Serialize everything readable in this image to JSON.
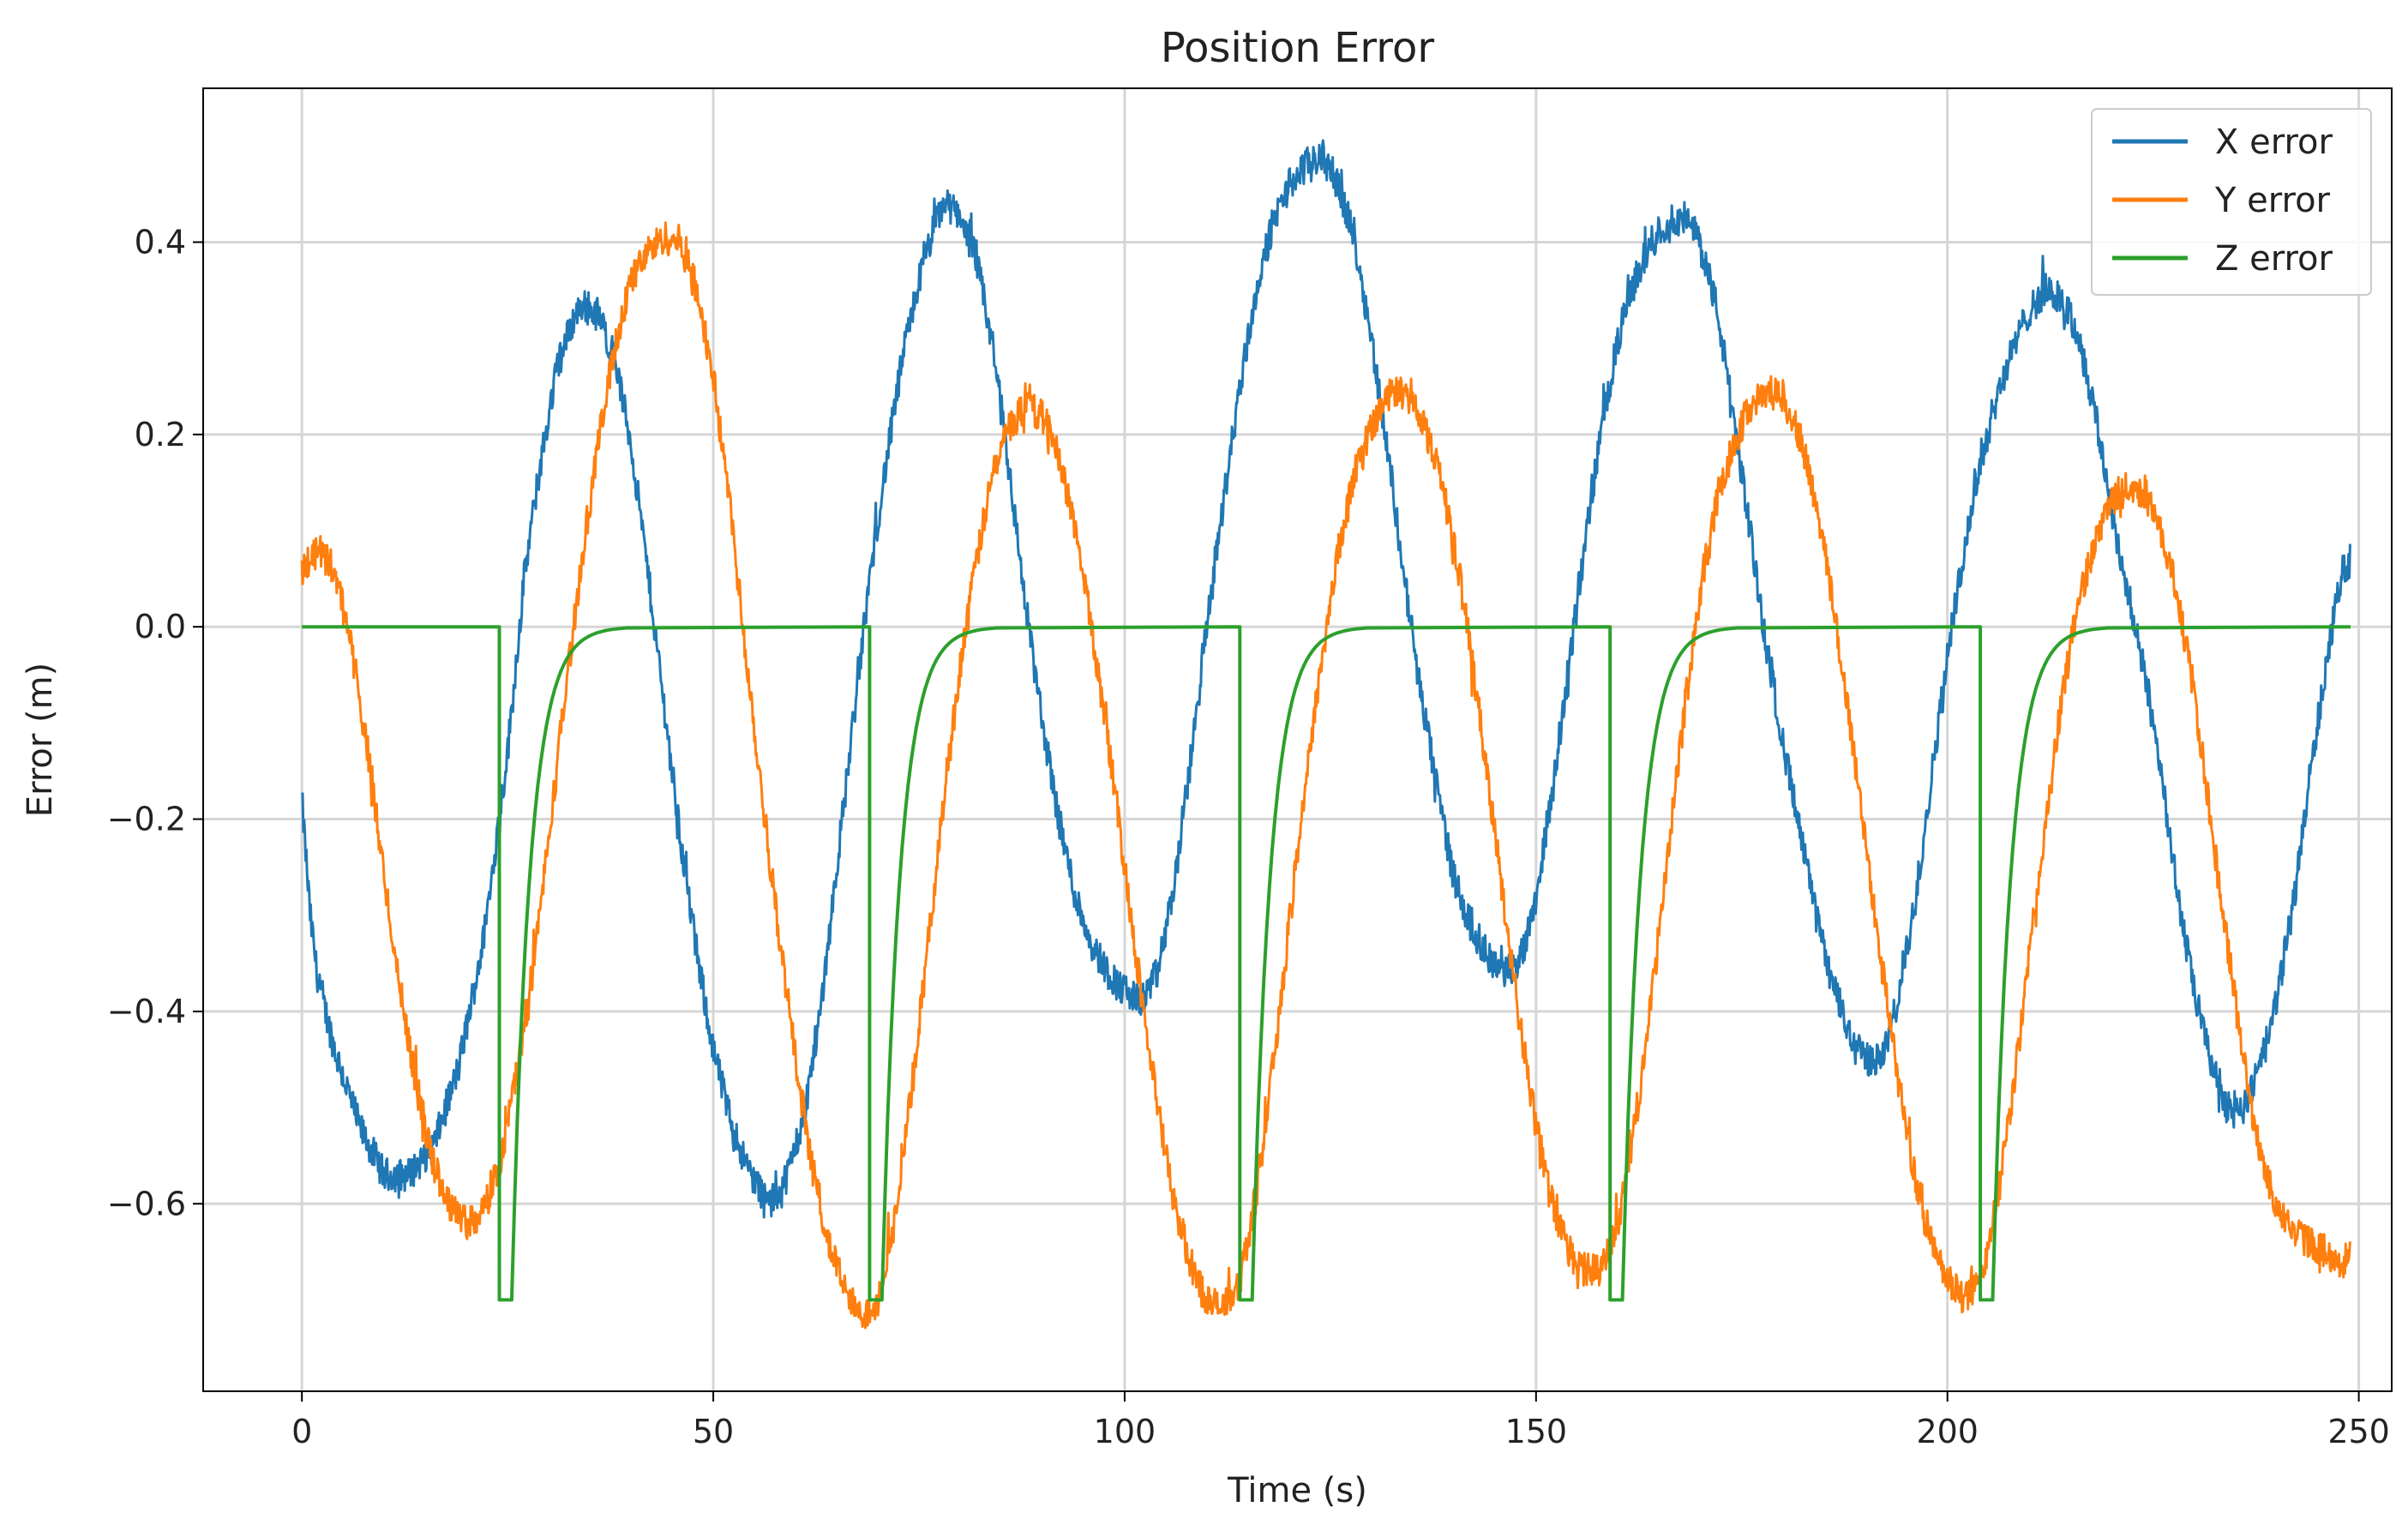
{
  "chart_data": {
    "type": "line",
    "title": "Position Error",
    "xlabel": "Time (s)",
    "ylabel": "Error (m)",
    "xlim": [
      -12,
      254
    ],
    "ylim": [
      -0.795,
      0.56
    ],
    "xticks": [
      0,
      50,
      100,
      150,
      200,
      250
    ],
    "yticks": [
      0.4,
      0.2,
      0.0,
      -0.2,
      -0.4,
      -0.6
    ],
    "ytick_labels": [
      "0.4",
      "0.2",
      "0.0",
      "−0.2",
      "−0.4",
      "−0.6"
    ],
    "grid": true,
    "legend_position": "top-right",
    "series": [
      {
        "name": "X error",
        "color": "#1f77b4",
        "noisy": true,
        "points": [
          [
            0,
            -0.18
          ],
          [
            1,
            -0.3
          ],
          [
            2,
            -0.37
          ],
          [
            4,
            -0.44
          ],
          [
            7,
            -0.52
          ],
          [
            10,
            -0.57
          ],
          [
            13,
            -0.57
          ],
          [
            16,
            -0.54
          ],
          [
            19,
            -0.46
          ],
          [
            22,
            -0.33
          ],
          [
            25,
            -0.13
          ],
          [
            27,
            0.05
          ],
          [
            29,
            0.17
          ],
          [
            31,
            0.27
          ],
          [
            33,
            0.32
          ],
          [
            34,
            0.335
          ],
          [
            36,
            0.325
          ],
          [
            38,
            0.28
          ],
          [
            40,
            0.19
          ],
          [
            42,
            0.06
          ],
          [
            44,
            -0.08
          ],
          [
            46,
            -0.22
          ],
          [
            48,
            -0.34
          ],
          [
            50,
            -0.44
          ],
          [
            52,
            -0.51
          ],
          [
            54,
            -0.56
          ],
          [
            56,
            -0.59
          ],
          [
            57,
            -0.6
          ],
          [
            59,
            -0.57
          ],
          [
            61,
            -0.51
          ],
          [
            63,
            -0.4
          ],
          [
            65,
            -0.25
          ],
          [
            67,
            -0.1
          ],
          [
            69,
            0.05
          ],
          [
            71,
            0.17
          ],
          [
            73,
            0.28
          ],
          [
            75,
            0.36
          ],
          [
            77,
            0.42
          ],
          [
            78,
            0.44
          ],
          [
            80,
            0.43
          ],
          [
            82,
            0.38
          ],
          [
            84,
            0.29
          ],
          [
            86,
            0.16
          ],
          [
            88,
            0.02
          ],
          [
            90,
            -0.1
          ],
          [
            92,
            -0.2
          ],
          [
            94,
            -0.28
          ],
          [
            96,
            -0.33
          ],
          [
            98,
            -0.36
          ],
          [
            100,
            -0.38
          ],
          [
            102,
            -0.39
          ],
          [
            104,
            -0.36
          ],
          [
            106,
            -0.27
          ],
          [
            108,
            -0.14
          ],
          [
            110,
            0.0
          ],
          [
            112,
            0.13
          ],
          [
            114,
            0.25
          ],
          [
            116,
            0.35
          ],
          [
            118,
            0.42
          ],
          [
            120,
            0.46
          ],
          [
            122,
            0.48
          ],
          [
            124,
            0.49
          ],
          [
            126,
            0.46
          ],
          [
            128,
            0.4
          ],
          [
            130,
            0.3
          ],
          [
            132,
            0.18
          ],
          [
            134,
            0.05
          ],
          [
            136,
            -0.07
          ],
          [
            138,
            -0.17
          ],
          [
            140,
            -0.26
          ],
          [
            142,
            -0.31
          ],
          [
            144,
            -0.34
          ],
          [
            146,
            -0.36
          ],
          [
            148,
            -0.35
          ],
          [
            150,
            -0.28
          ],
          [
            152,
            -0.17
          ],
          [
            154,
            -0.04
          ],
          [
            156,
            0.09
          ],
          [
            158,
            0.21
          ],
          [
            160,
            0.3
          ],
          [
            162,
            0.36
          ],
          [
            164,
            0.4
          ],
          [
            166,
            0.42
          ],
          [
            168,
            0.425
          ],
          [
            170,
            0.4
          ],
          [
            172,
            0.33
          ],
          [
            174,
            0.22
          ],
          [
            176,
            0.1
          ],
          [
            178,
            -0.02
          ],
          [
            180,
            -0.12
          ],
          [
            182,
            -0.21
          ],
          [
            184,
            -0.3
          ],
          [
            186,
            -0.37
          ],
          [
            188,
            -0.42
          ],
          [
            190,
            -0.45
          ],
          [
            192,
            -0.45
          ],
          [
            194,
            -0.39
          ],
          [
            196,
            -0.29
          ],
          [
            198,
            -0.16
          ],
          [
            200,
            -0.03
          ],
          [
            202,
            0.08
          ],
          [
            204,
            0.17
          ],
          [
            206,
            0.24
          ],
          [
            208,
            0.29
          ],
          [
            210,
            0.33
          ],
          [
            212,
            0.35
          ],
          [
            214,
            0.34
          ],
          [
            216,
            0.3
          ],
          [
            218,
            0.22
          ],
          [
            220,
            0.12
          ],
          [
            222,
            0.03
          ],
          [
            224,
            -0.05
          ],
          [
            226,
            -0.15
          ],
          [
            228,
            -0.28
          ],
          [
            230,
            -0.38
          ],
          [
            232,
            -0.45
          ],
          [
            234,
            -0.5
          ],
          [
            236,
            -0.5
          ],
          [
            238,
            -0.46
          ],
          [
            240,
            -0.39
          ],
          [
            242,
            -0.29
          ],
          [
            244,
            -0.16
          ],
          [
            246,
            -0.04
          ],
          [
            248,
            0.06
          ],
          [
            249,
            0.07
          ]
        ]
      },
      {
        "name": "Y error",
        "color": "#ff7f0e",
        "noisy": true,
        "points": [
          [
            0,
            0.06
          ],
          [
            2,
            0.08
          ],
          [
            4,
            0.06
          ],
          [
            6,
            -0.02
          ],
          [
            8,
            -0.13
          ],
          [
            10,
            -0.26
          ],
          [
            12,
            -0.38
          ],
          [
            14,
            -0.48
          ],
          [
            16,
            -0.56
          ],
          [
            18,
            -0.6
          ],
          [
            20,
            -0.62
          ],
          [
            22,
            -0.61
          ],
          [
            24,
            -0.56
          ],
          [
            26,
            -0.47
          ],
          [
            28,
            -0.36
          ],
          [
            30,
            -0.22
          ],
          [
            32,
            -0.07
          ],
          [
            34,
            0.07
          ],
          [
            36,
            0.19
          ],
          [
            38,
            0.29
          ],
          [
            40,
            0.36
          ],
          [
            42,
            0.39
          ],
          [
            44,
            0.405
          ],
          [
            46,
            0.4
          ],
          [
            48,
            0.35
          ],
          [
            50,
            0.26
          ],
          [
            52,
            0.13
          ],
          [
            54,
            -0.03
          ],
          [
            56,
            -0.18
          ],
          [
            58,
            -0.32
          ],
          [
            60,
            -0.45
          ],
          [
            62,
            -0.56
          ],
          [
            64,
            -0.64
          ],
          [
            66,
            -0.69
          ],
          [
            68,
            -0.72
          ],
          [
            70,
            -0.7
          ],
          [
            72,
            -0.62
          ],
          [
            74,
            -0.49
          ],
          [
            76,
            -0.34
          ],
          [
            78,
            -0.18
          ],
          [
            80,
            -0.04
          ],
          [
            82,
            0.07
          ],
          [
            84,
            0.16
          ],
          [
            86,
            0.21
          ],
          [
            88,
            0.23
          ],
          [
            90,
            0.22
          ],
          [
            92,
            0.18
          ],
          [
            94,
            0.1
          ],
          [
            96,
            0.0
          ],
          [
            98,
            -0.12
          ],
          [
            100,
            -0.25
          ],
          [
            102,
            -0.38
          ],
          [
            104,
            -0.5
          ],
          [
            106,
            -0.6
          ],
          [
            108,
            -0.66
          ],
          [
            110,
            -0.7
          ],
          [
            112,
            -0.71
          ],
          [
            114,
            -0.68
          ],
          [
            116,
            -0.59
          ],
          [
            118,
            -0.46
          ],
          [
            120,
            -0.31
          ],
          [
            122,
            -0.16
          ],
          [
            124,
            -0.03
          ],
          [
            126,
            0.08
          ],
          [
            128,
            0.16
          ],
          [
            130,
            0.21
          ],
          [
            132,
            0.24
          ],
          [
            134,
            0.245
          ],
          [
            136,
            0.22
          ],
          [
            138,
            0.17
          ],
          [
            140,
            0.09
          ],
          [
            142,
            -0.02
          ],
          [
            144,
            -0.15
          ],
          [
            146,
            -0.28
          ],
          [
            148,
            -0.41
          ],
          [
            150,
            -0.52
          ],
          [
            152,
            -0.6
          ],
          [
            154,
            -0.65
          ],
          [
            156,
            -0.67
          ],
          [
            158,
            -0.67
          ],
          [
            160,
            -0.62
          ],
          [
            162,
            -0.52
          ],
          [
            164,
            -0.39
          ],
          [
            166,
            -0.24
          ],
          [
            168,
            -0.09
          ],
          [
            170,
            0.04
          ],
          [
            172,
            0.13
          ],
          [
            174,
            0.19
          ],
          [
            176,
            0.23
          ],
          [
            178,
            0.245
          ],
          [
            180,
            0.24
          ],
          [
            182,
            0.2
          ],
          [
            184,
            0.13
          ],
          [
            186,
            0.03
          ],
          [
            188,
            -0.09
          ],
          [
            190,
            -0.22
          ],
          [
            192,
            -0.35
          ],
          [
            194,
            -0.47
          ],
          [
            196,
            -0.57
          ],
          [
            198,
            -0.64
          ],
          [
            200,
            -0.68
          ],
          [
            202,
            -0.7
          ],
          [
            204,
            -0.68
          ],
          [
            206,
            -0.6
          ],
          [
            208,
            -0.48
          ],
          [
            210,
            -0.34
          ],
          [
            212,
            -0.2
          ],
          [
            214,
            -0.07
          ],
          [
            216,
            0.03
          ],
          [
            218,
            0.09
          ],
          [
            220,
            0.13
          ],
          [
            222,
            0.145
          ],
          [
            224,
            0.14
          ],
          [
            226,
            0.1
          ],
          [
            228,
            0.03
          ],
          [
            230,
            -0.07
          ],
          [
            232,
            -0.2
          ],
          [
            234,
            -0.33
          ],
          [
            236,
            -0.45
          ],
          [
            238,
            -0.55
          ],
          [
            240,
            -0.6
          ],
          [
            242,
            -0.63
          ],
          [
            244,
            -0.64
          ],
          [
            246,
            -0.65
          ],
          [
            248,
            -0.66
          ],
          [
            249,
            -0.655
          ]
        ]
      },
      {
        "name": "Z error",
        "color": "#2ca02c",
        "noisy": false,
        "drops": [
          24,
          69,
          114,
          159,
          204
        ],
        "points": [
          [
            0,
            0.0
          ],
          [
            249,
            0.0
          ]
        ]
      }
    ]
  }
}
